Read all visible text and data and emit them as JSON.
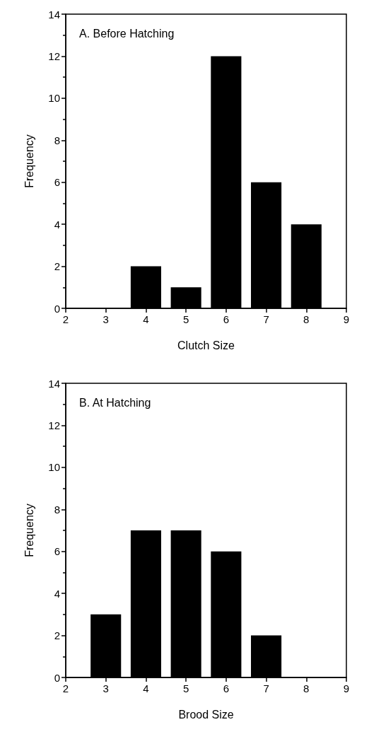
{
  "chart_data": [
    {
      "type": "bar",
      "title": "A. Before Hatching",
      "xlabel": "Clutch Size",
      "ylabel": "Frequency",
      "x": [
        4,
        5,
        6,
        7,
        8
      ],
      "values": [
        2,
        1,
        12,
        6,
        4
      ],
      "color": "#000000",
      "xlim": [
        2,
        9
      ],
      "xticks": [
        2,
        3,
        4,
        5,
        6,
        7,
        8,
        9
      ],
      "ylim": [
        0,
        14
      ],
      "yticks": [
        0,
        2,
        4,
        6,
        8,
        10,
        12,
        14
      ],
      "grid": false
    },
    {
      "type": "bar",
      "title": "B. At Hatching",
      "xlabel": "Brood Size",
      "ylabel": "Frequency",
      "x": [
        3,
        4,
        5,
        6,
        7
      ],
      "values": [
        3,
        7,
        7,
        6,
        2
      ],
      "color": "#000000",
      "xlim": [
        2,
        9
      ],
      "xticks": [
        2,
        3,
        4,
        5,
        6,
        7,
        8,
        9
      ],
      "ylim": [
        0,
        14
      ],
      "yticks": [
        0,
        2,
        4,
        6,
        8,
        10,
        12,
        14
      ],
      "grid": false
    }
  ]
}
